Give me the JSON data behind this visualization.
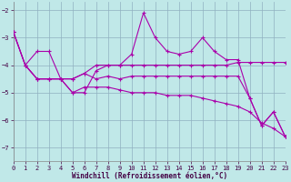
{
  "bg_color": "#c0e8e8",
  "grid_color": "#90b0c0",
  "line_color": "#aa00aa",
  "xlabel": "Windchill (Refroidissement éolien,°C)",
  "xlim": [
    0,
    23
  ],
  "ylim": [
    -7.5,
    -1.7
  ],
  "yticks": [
    -7,
    -6,
    -5,
    -4,
    -3,
    -2
  ],
  "xticks": [
    0,
    1,
    2,
    3,
    4,
    5,
    6,
    7,
    8,
    9,
    10,
    11,
    12,
    13,
    14,
    15,
    16,
    17,
    18,
    19,
    20,
    21,
    22,
    23
  ],
  "lines": [
    {
      "x": [
        0,
        1,
        2,
        3,
        4,
        5,
        6,
        7,
        8,
        9,
        10,
        11,
        12,
        13,
        14,
        15,
        16,
        17,
        18,
        19,
        20,
        21,
        22,
        23
      ],
      "y": [
        -2.8,
        -4.0,
        -3.5,
        -3.5,
        -4.5,
        -5.0,
        -5.0,
        -4.2,
        -4.0,
        -4.0,
        -3.6,
        -2.1,
        -3.0,
        -3.5,
        -3.6,
        -3.5,
        -3.0,
        -3.5,
        -3.8,
        -3.8,
        -5.2,
        -6.2,
        -5.7,
        -6.6
      ]
    },
    {
      "x": [
        1,
        2,
        3,
        4,
        5,
        6,
        7,
        8,
        9,
        10,
        11,
        12,
        13,
        14,
        15,
        16,
        17,
        18,
        19,
        20,
        21,
        22,
        23
      ],
      "y": [
        -4.0,
        -4.5,
        -4.5,
        -4.5,
        -4.5,
        -4.3,
        -4.0,
        -4.0,
        -4.0,
        -4.0,
        -4.0,
        -4.0,
        -4.0,
        -4.0,
        -4.0,
        -4.0,
        -4.0,
        -4.0,
        -3.9,
        -3.9,
        -3.9,
        -3.9,
        -3.9
      ]
    },
    {
      "x": [
        0,
        1,
        2,
        3,
        4,
        5,
        6,
        7,
        8,
        9,
        10,
        11,
        12,
        13,
        14,
        15,
        16,
        17,
        18,
        19,
        20,
        21,
        22,
        23
      ],
      "y": [
        -2.8,
        -4.0,
        -4.5,
        -4.5,
        -4.5,
        -5.0,
        -4.8,
        -4.8,
        -4.8,
        -4.9,
        -5.0,
        -5.0,
        -5.0,
        -5.1,
        -5.1,
        -5.1,
        -5.2,
        -5.3,
        -5.4,
        -5.5,
        -5.7,
        -6.1,
        -6.3,
        -6.6
      ]
    },
    {
      "x": [
        0,
        1,
        2,
        3,
        4,
        5,
        6,
        7,
        8,
        9,
        10,
        11,
        12,
        13,
        14,
        15,
        16,
        17,
        18,
        19,
        20,
        21,
        22,
        23
      ],
      "y": [
        -2.8,
        -4.0,
        -4.5,
        -4.5,
        -4.5,
        -4.5,
        -4.3,
        -4.5,
        -4.4,
        -4.5,
        -4.4,
        -4.4,
        -4.4,
        -4.4,
        -4.4,
        -4.4,
        -4.4,
        -4.4,
        -4.4,
        -4.4,
        -5.2,
        -6.2,
        -5.7,
        -6.6
      ]
    }
  ]
}
